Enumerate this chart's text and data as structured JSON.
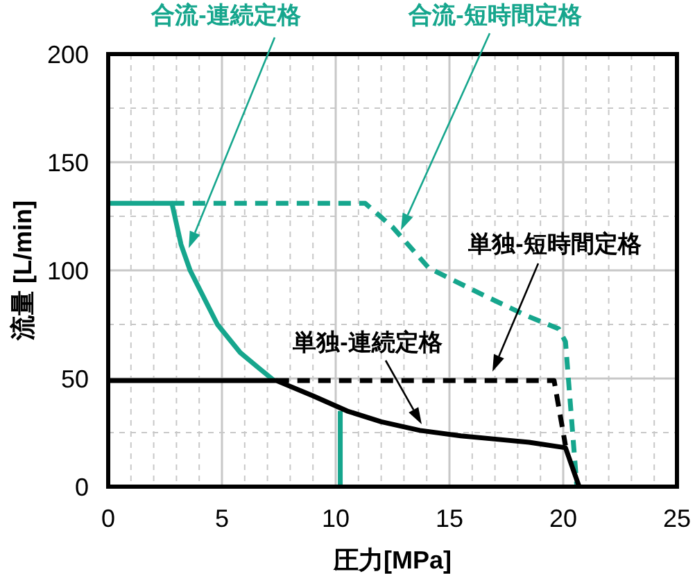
{
  "chart_data": {
    "type": "line",
    "xlabel": "圧力[MPa]",
    "ylabel": "流量 [L/min]",
    "xlim": [
      0,
      25
    ],
    "xticks": [
      0,
      {
        "value": 1,
        "label": null
      },
      {
        "value": 2,
        "label": null
      },
      {
        "value": 3,
        "label": null
      },
      {
        "value": 4,
        "label": null
      },
      5,
      {
        "value": 6,
        "label": null
      },
      {
        "value": 7,
        "label": null
      },
      {
        "value": 8,
        "label": null
      },
      {
        "value": 9,
        "label": null
      },
      10,
      {
        "value": 11,
        "label": null
      },
      {
        "value": 12,
        "label": null
      },
      {
        "value": 13,
        "label": null
      },
      {
        "value": 14,
        "label": null
      },
      15,
      {
        "value": 16,
        "label": null
      },
      {
        "value": 17,
        "label": null
      },
      {
        "value": 18,
        "label": null
      },
      {
        "value": 19,
        "label": null
      },
      20,
      {
        "value": 21,
        "label": null
      },
      {
        "value": 22,
        "label": null
      },
      {
        "value": 23,
        "label": null
      },
      {
        "value": 24,
        "label": null
      },
      25
    ],
    "ylim": [
      0,
      200
    ],
    "yticks": [
      0,
      {
        "value": 25,
        "label": null
      },
      50,
      {
        "value": 75,
        "label": null
      },
      100,
      {
        "value": 125,
        "label": null
      },
      150,
      {
        "value": 175,
        "label": null
      },
      200
    ],
    "grid": true,
    "marker": "none",
    "series": [
      {
        "color": "#16a68d",
        "line_style": "solid",
        "x": [
          0,
          2.8,
          3.2,
          3.6,
          4.8,
          5.8,
          6.6,
          7.3
        ],
        "values": [
          131,
          131,
          112,
          100,
          75,
          62,
          55,
          49
        ]
      },
      {
        "color": "#16a68d",
        "line_style": "solid",
        "x": [
          10.2,
          10.2
        ],
        "values": [
          35,
          0
        ]
      },
      {
        "color": "#16a68d",
        "line_style": "dashed",
        "x": [
          2.8,
          11.3,
          12.5,
          14.1,
          16.6,
          18.4,
          19.8,
          20.1,
          20.6
        ],
        "values": [
          131,
          131,
          120,
          101,
          88,
          79,
          73,
          67,
          0
        ]
      },
      {
        "color": "#000000",
        "line_style": "solid",
        "x": [
          0,
          7.4,
          9,
          10.5,
          12,
          13.7,
          15.5,
          17,
          18.5,
          20.1,
          20.7
        ],
        "values": [
          49,
          49,
          42,
          35,
          30,
          26,
          23.5,
          22,
          20.5,
          18,
          0
        ]
      },
      {
        "color": "#000000",
        "line_style": "dashed",
        "x": [
          7.4,
          19.6,
          20.1
        ],
        "values": [
          49,
          49,
          19
        ]
      }
    ],
    "annotations": [
      "合流-連続定格",
      "合流-短時間定格",
      "単独-短時間定格",
      "単独-連続定格"
    ]
  }
}
